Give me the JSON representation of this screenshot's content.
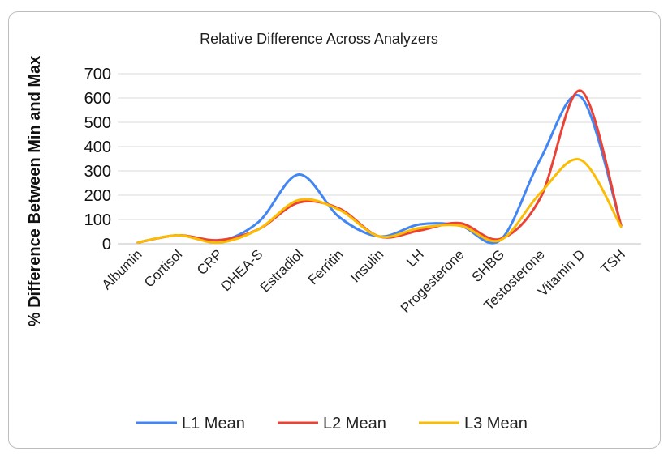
{
  "chart_data": {
    "type": "line",
    "title": "Relative Difference Across Analyzers",
    "xlabel": "",
    "ylabel": "% Difference Between Min and Max",
    "ylim": [
      0,
      700
    ],
    "yticks": [
      0,
      100,
      200,
      300,
      400,
      500,
      600,
      700
    ],
    "grid": true,
    "legend_position": "bottom",
    "smooth": true,
    "categories": [
      "Albumin",
      "Cortisol",
      "CRP",
      "DHEA-S",
      "Estradiol",
      "Ferritin",
      "Insulin",
      "LH",
      "Progesterone",
      "SHBG",
      "Testosterone",
      "Vitamin D",
      "TSH"
    ],
    "series": [
      {
        "name": "L1 Mean",
        "color": "#4285f4",
        "values": [
          5,
          35,
          10,
          90,
          285,
          110,
          30,
          80,
          75,
          15,
          350,
          605,
          75
        ]
      },
      {
        "name": "L2 Mean",
        "color": "#ea4335",
        "values": [
          5,
          35,
          15,
          60,
          170,
          145,
          30,
          55,
          85,
          20,
          190,
          630,
          75
        ]
      },
      {
        "name": "L3 Mean",
        "color": "#fbbc04",
        "values": [
          5,
          35,
          5,
          60,
          180,
          140,
          30,
          65,
          75,
          15,
          210,
          345,
          70
        ]
      }
    ]
  }
}
